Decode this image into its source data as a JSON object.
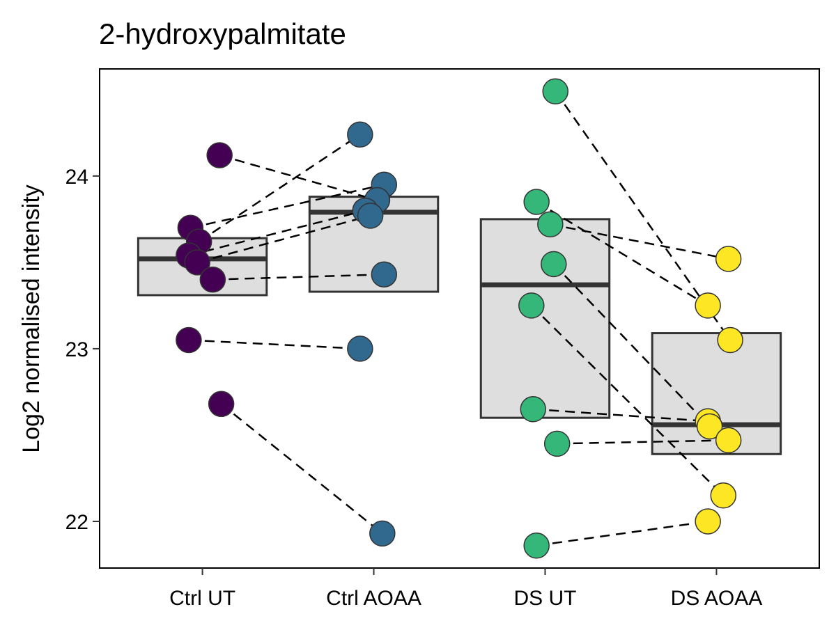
{
  "chart_data": {
    "type": "box-with-paired-points",
    "title": "2-hydroxypalmitate",
    "xlabel": "",
    "ylabel": "Log2 normalised intensity",
    "ylim": [
      21.73,
      24.62
    ],
    "yticks": [
      22,
      23,
      24
    ],
    "grid": false,
    "legend": "none",
    "categories": [
      "Ctrl UT",
      "Ctrl AOAA",
      "DS UT",
      "DS AOAA"
    ],
    "colors": [
      "#440154",
      "#31688E",
      "#35B779",
      "#FDE725"
    ],
    "boxes": [
      {
        "category": "Ctrl UT",
        "q1": 23.31,
        "median": 23.52,
        "q3": 23.64
      },
      {
        "category": "Ctrl AOAA",
        "q1": 23.33,
        "median": 23.79,
        "q3": 23.88
      },
      {
        "category": "DS UT",
        "q1": 22.6,
        "median": 23.37,
        "q3": 23.75
      },
      {
        "category": "DS AOAA",
        "q1": 22.39,
        "median": 22.56,
        "q3": 23.09
      }
    ],
    "points": [
      {
        "category": "Ctrl UT",
        "jitter": 0.1,
        "y": 24.12
      },
      {
        "category": "Ctrl UT",
        "jitter": -0.07,
        "y": 23.7
      },
      {
        "category": "Ctrl UT",
        "jitter": -0.02,
        "y": 23.62
      },
      {
        "category": "Ctrl UT",
        "jitter": -0.08,
        "y": 23.54
      },
      {
        "category": "Ctrl UT",
        "jitter": -0.03,
        "y": 23.5
      },
      {
        "category": "Ctrl UT",
        "jitter": 0.06,
        "y": 23.4
      },
      {
        "category": "Ctrl UT",
        "jitter": -0.08,
        "y": 23.05
      },
      {
        "category": "Ctrl UT",
        "jitter": 0.11,
        "y": 22.68
      },
      {
        "category": "Ctrl AOAA",
        "jitter": -0.08,
        "y": 24.24
      },
      {
        "category": "Ctrl AOAA",
        "jitter": 0.06,
        "y": 23.95
      },
      {
        "category": "Ctrl AOAA",
        "jitter": 0.02,
        "y": 23.86
      },
      {
        "category": "Ctrl AOAA",
        "jitter": -0.05,
        "y": 23.8
      },
      {
        "category": "Ctrl AOAA",
        "jitter": -0.02,
        "y": 23.77
      },
      {
        "category": "Ctrl AOAA",
        "jitter": 0.06,
        "y": 23.43
      },
      {
        "category": "Ctrl AOAA",
        "jitter": -0.08,
        "y": 23.0
      },
      {
        "category": "Ctrl AOAA",
        "jitter": 0.05,
        "y": 21.93
      },
      {
        "category": "DS UT",
        "jitter": 0.06,
        "y": 24.49
      },
      {
        "category": "DS UT",
        "jitter": -0.05,
        "y": 23.85
      },
      {
        "category": "DS UT",
        "jitter": 0.03,
        "y": 23.72
      },
      {
        "category": "DS UT",
        "jitter": 0.05,
        "y": 23.49
      },
      {
        "category": "DS UT",
        "jitter": -0.08,
        "y": 23.25
      },
      {
        "category": "DS UT",
        "jitter": -0.07,
        "y": 22.65
      },
      {
        "category": "DS UT",
        "jitter": 0.07,
        "y": 22.45
      },
      {
        "category": "DS UT",
        "jitter": -0.05,
        "y": 21.86
      },
      {
        "category": "DS AOAA",
        "jitter": 0.07,
        "y": 23.52
      },
      {
        "category": "DS AOAA",
        "jitter": -0.05,
        "y": 23.25
      },
      {
        "category": "DS AOAA",
        "jitter": 0.08,
        "y": 23.05
      },
      {
        "category": "DS AOAA",
        "jitter": -0.05,
        "y": 22.58
      },
      {
        "category": "DS AOAA",
        "jitter": -0.04,
        "y": 22.55
      },
      {
        "category": "DS AOAA",
        "jitter": 0.07,
        "y": 22.47
      },
      {
        "category": "DS AOAA",
        "jitter": 0.04,
        "y": 22.15
      },
      {
        "category": "DS AOAA",
        "jitter": -0.05,
        "y": 22.0
      }
    ],
    "pairs": [
      {
        "from": {
          "category": "Ctrl UT",
          "jitter": 0.1,
          "y": 24.12
        },
        "to": {
          "category": "Ctrl AOAA",
          "jitter": 0.02,
          "y": 23.86
        }
      },
      {
        "from": {
          "category": "Ctrl UT",
          "jitter": -0.07,
          "y": 23.7
        },
        "to": {
          "category": "Ctrl AOAA",
          "jitter": 0.06,
          "y": 23.95
        }
      },
      {
        "from": {
          "category": "Ctrl UT",
          "jitter": -0.02,
          "y": 23.62
        },
        "to": {
          "category": "Ctrl AOAA",
          "jitter": -0.08,
          "y": 24.24
        }
      },
      {
        "from": {
          "category": "Ctrl UT",
          "jitter": -0.08,
          "y": 23.54
        },
        "to": {
          "category": "Ctrl AOAA",
          "jitter": -0.05,
          "y": 23.8
        }
      },
      {
        "from": {
          "category": "Ctrl UT",
          "jitter": -0.03,
          "y": 23.5
        },
        "to": {
          "category": "Ctrl AOAA",
          "jitter": -0.02,
          "y": 23.77
        }
      },
      {
        "from": {
          "category": "Ctrl UT",
          "jitter": 0.06,
          "y": 23.4
        },
        "to": {
          "category": "Ctrl AOAA",
          "jitter": 0.06,
          "y": 23.43
        }
      },
      {
        "from": {
          "category": "Ctrl UT",
          "jitter": -0.08,
          "y": 23.05
        },
        "to": {
          "category": "Ctrl AOAA",
          "jitter": -0.08,
          "y": 23.0
        }
      },
      {
        "from": {
          "category": "Ctrl UT",
          "jitter": 0.11,
          "y": 22.68
        },
        "to": {
          "category": "Ctrl AOAA",
          "jitter": 0.05,
          "y": 21.93
        }
      },
      {
        "from": {
          "category": "DS UT",
          "jitter": 0.06,
          "y": 24.49
        },
        "to": {
          "category": "DS AOAA",
          "jitter": 0.08,
          "y": 23.05
        }
      },
      {
        "from": {
          "category": "DS UT",
          "jitter": -0.05,
          "y": 23.85
        },
        "to": {
          "category": "DS AOAA",
          "jitter": -0.05,
          "y": 23.25
        }
      },
      {
        "from": {
          "category": "DS UT",
          "jitter": 0.03,
          "y": 23.72
        },
        "to": {
          "category": "DS AOAA",
          "jitter": 0.07,
          "y": 23.52
        }
      },
      {
        "from": {
          "category": "DS UT",
          "jitter": 0.05,
          "y": 23.49
        },
        "to": {
          "category": "DS AOAA",
          "jitter": -0.04,
          "y": 22.55
        }
      },
      {
        "from": {
          "category": "DS UT",
          "jitter": -0.08,
          "y": 23.25
        },
        "to": {
          "category": "DS AOAA",
          "jitter": 0.04,
          "y": 22.15
        }
      },
      {
        "from": {
          "category": "DS UT",
          "jitter": -0.07,
          "y": 22.65
        },
        "to": {
          "category": "DS AOAA",
          "jitter": -0.05,
          "y": 22.58
        }
      },
      {
        "from": {
          "category": "DS UT",
          "jitter": 0.07,
          "y": 22.45
        },
        "to": {
          "category": "DS AOAA",
          "jitter": 0.07,
          "y": 22.47
        }
      },
      {
        "from": {
          "category": "DS UT",
          "jitter": -0.05,
          "y": 21.86
        },
        "to": {
          "category": "DS AOAA",
          "jitter": -0.05,
          "y": 22.0
        }
      }
    ]
  }
}
